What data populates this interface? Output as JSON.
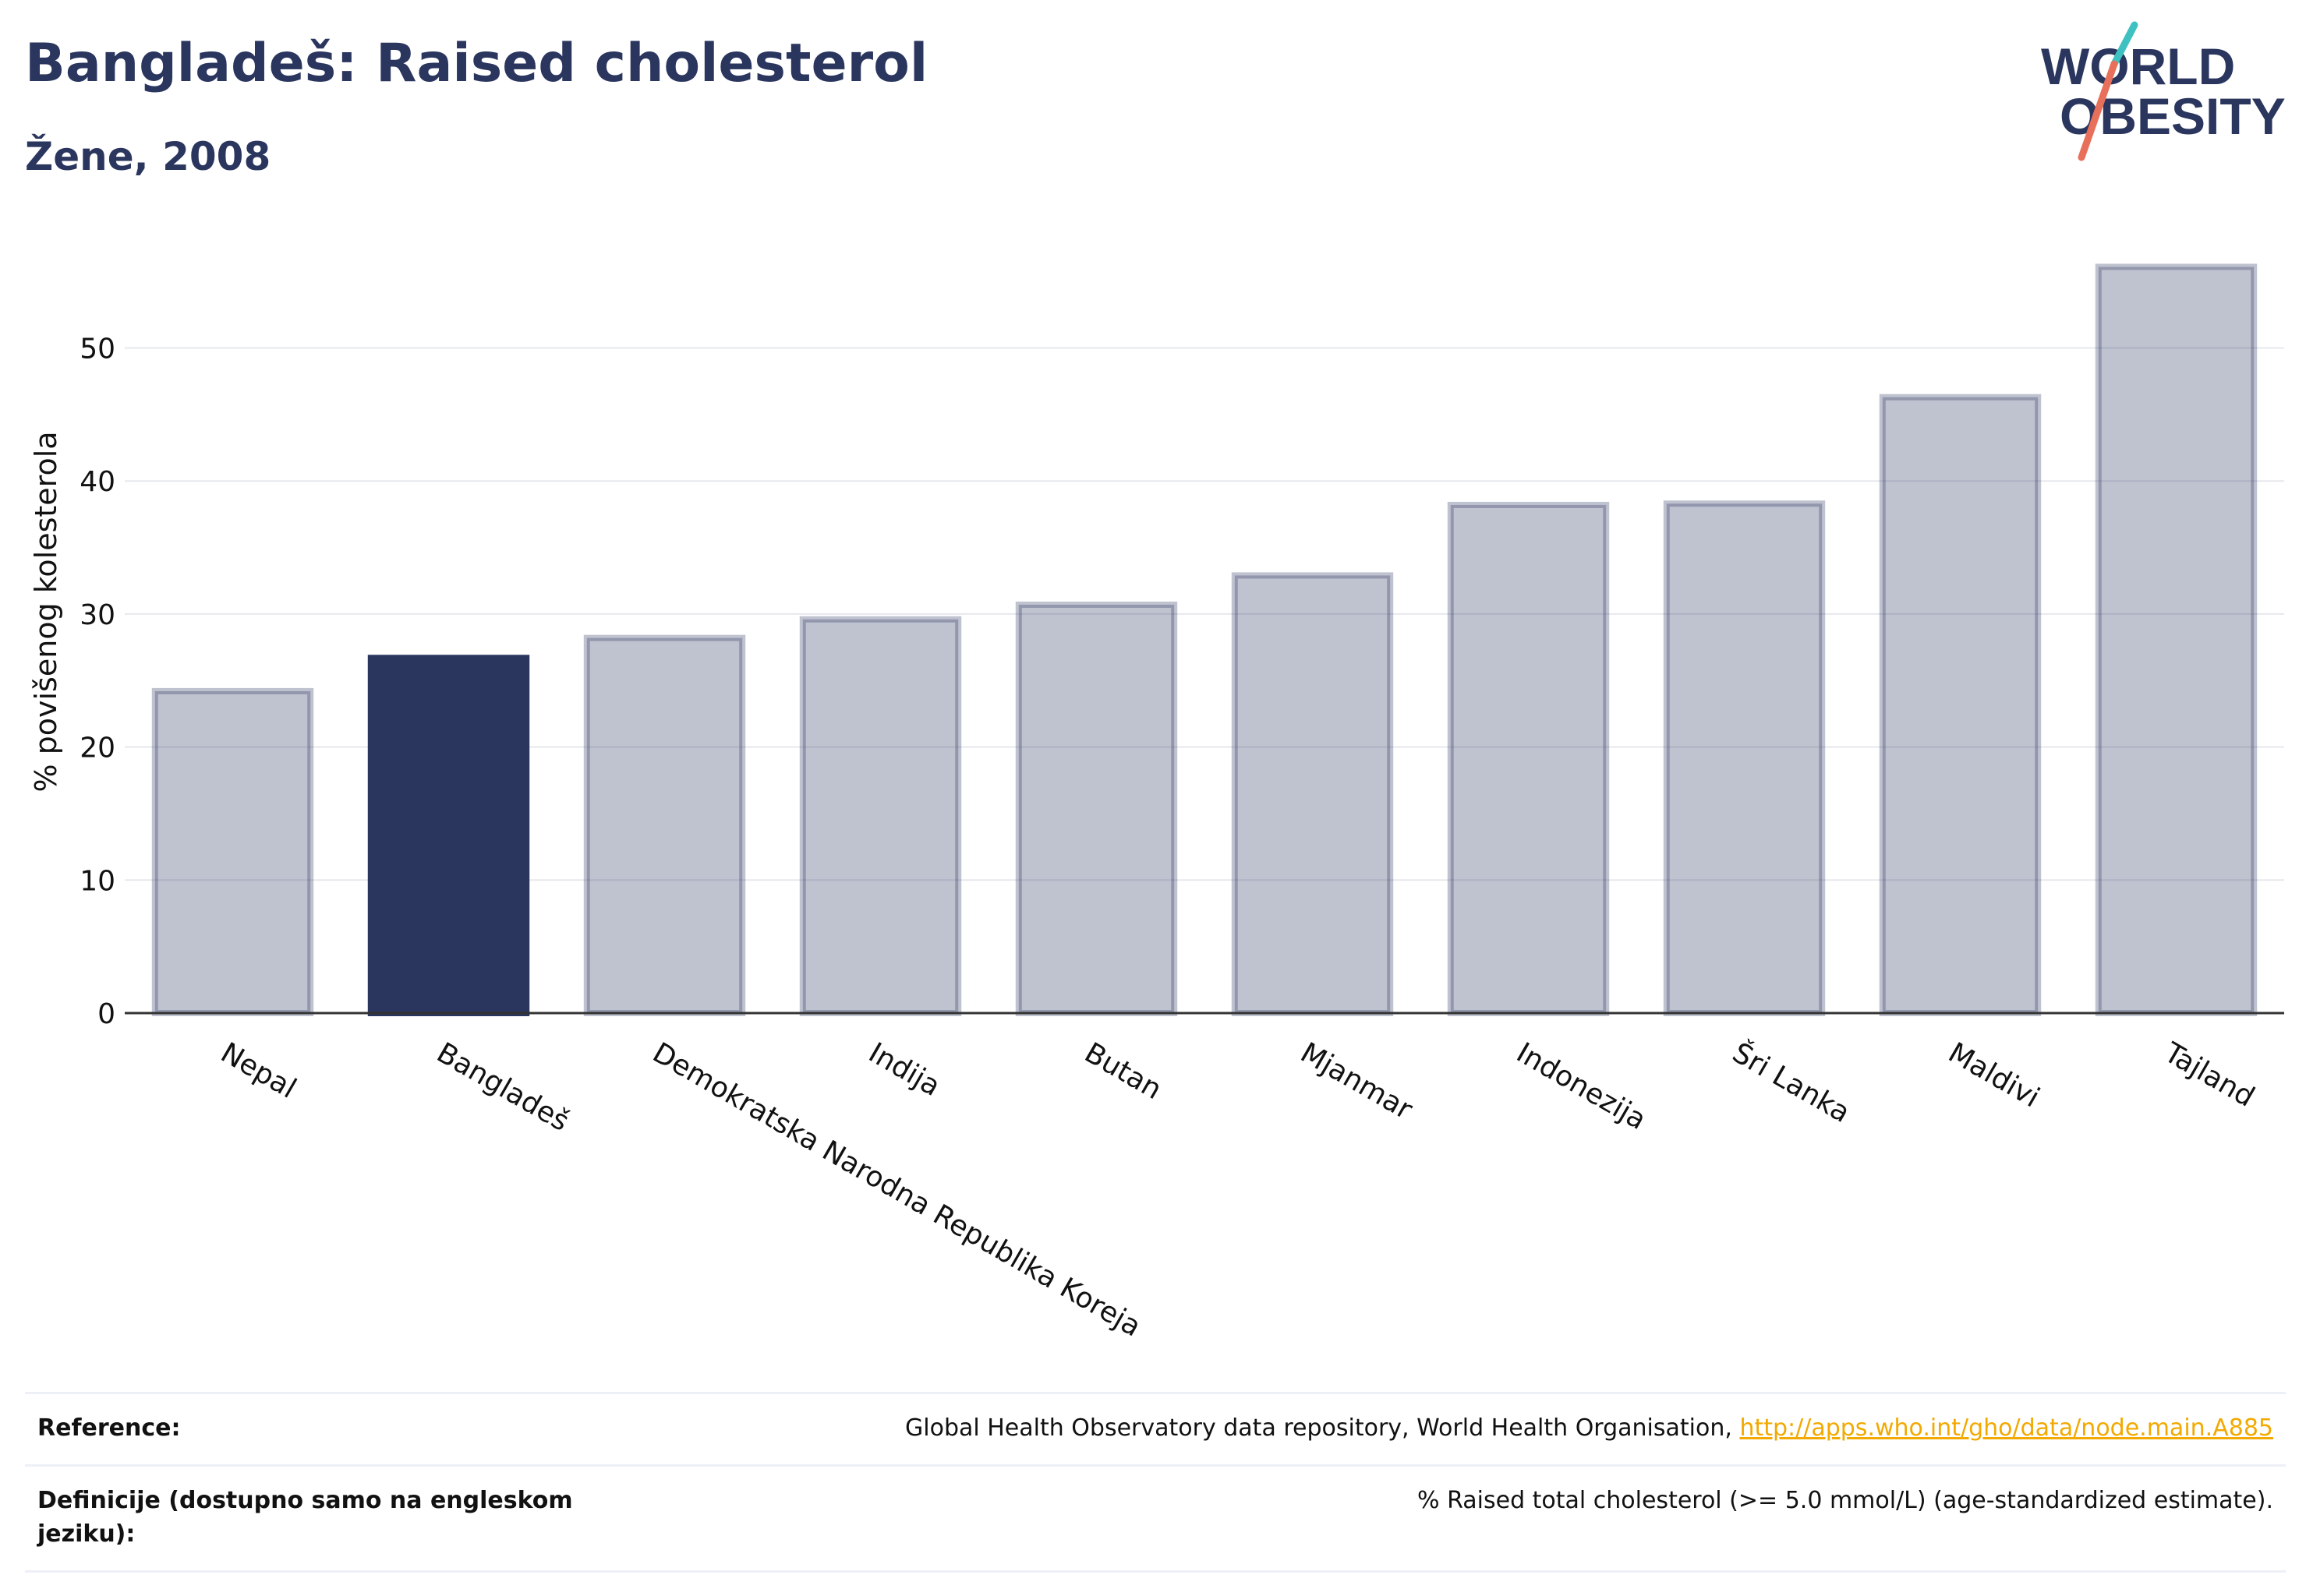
{
  "header": {
    "title": "Bangladeš: Raised cholesterol",
    "subtitle": "Žene, 2008"
  },
  "logo": {
    "line1": "WORLD",
    "line2": "OBESITY"
  },
  "chart_data": {
    "type": "bar",
    "categories": [
      "Nepal",
      "Bangladeš",
      "Demokratska Narodna Republika Koreja",
      "Indija",
      "Butan",
      "Mjanmar",
      "Indonezija",
      "Šri Lanka",
      "Maldivi",
      "Tajland"
    ],
    "values": [
      24.2,
      26.7,
      28.2,
      29.6,
      30.7,
      32.9,
      38.2,
      38.3,
      46.3,
      56.1
    ],
    "highlight": "Bangladeš",
    "ylabel": "% povišenog kolesterola",
    "xlabel": "",
    "ylim": [
      0,
      58
    ],
    "yticks": [
      0,
      10,
      20,
      30,
      40,
      50
    ],
    "grid": true,
    "colors": {
      "bar": "#2b365f",
      "highlight": "#2b365f",
      "bar_opacity": 0.3
    }
  },
  "references": [
    {
      "label": "Reference:",
      "text": "Global Health Observatory data repository, World Health Organisation, ",
      "link": "http://apps.who.int/gho/data/node.main.A885"
    },
    {
      "label": "Definicije (dostupno samo na engleskom jeziku):",
      "text": "% Raised total cholesterol (>= 5.0 mmol/L) (age-standardized estimate).",
      "link": ""
    }
  ]
}
